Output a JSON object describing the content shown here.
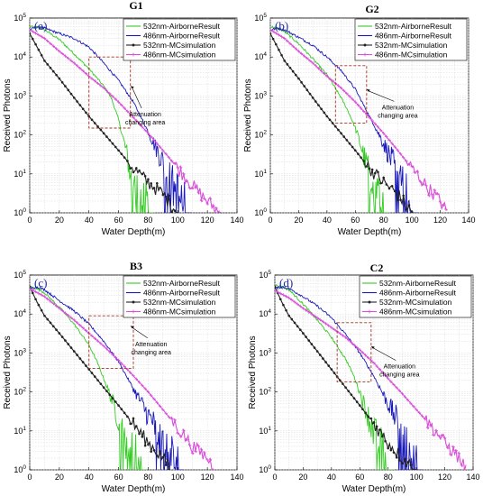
{
  "colors": {
    "green": "#33cc22",
    "blue": "#1a1ab8",
    "black": "#222222",
    "magenta": "#d84fd8",
    "box": "#a0301c"
  },
  "legend_labels": [
    "532nm-AirborneResult",
    "486nm-AirborneResult",
    "532nm-MCsimulation",
    "486nm-MCsimulation"
  ],
  "annotation": [
    "Attenuation",
    "changing area"
  ],
  "xlabel": "Water Depth(m)",
  "ylabel": "Received Photons",
  "chart_data": [
    {
      "type": "line",
      "title": "G1",
      "panel_label": "(a)",
      "xlabel": "Water Depth(m)",
      "ylabel": "Received Photons",
      "xlim": [
        0,
        140
      ],
      "ylim": [
        1,
        100000
      ],
      "yscale": "log",
      "xticks": [
        0,
        20,
        40,
        60,
        80,
        100,
        120,
        140
      ],
      "yticks": [
        "10^0",
        "10^1",
        "10^2",
        "10^3",
        "10^4",
        "10^5"
      ],
      "legend_placement": "top-right",
      "grid": true,
      "series": [
        {
          "name": "532nm-AirborneResult",
          "x": [
            0,
            5,
            10,
            20,
            30,
            40,
            50,
            55,
            60,
            65,
            68,
            70,
            75,
            80
          ],
          "y": [
            60000,
            58000,
            50000,
            28000,
            12000,
            5000,
            1800,
            900,
            250,
            40,
            10,
            4,
            2,
            1
          ]
        },
        {
          "name": "486nm-AirborneResult",
          "x": [
            0,
            5,
            10,
            20,
            30,
            40,
            50,
            60,
            70,
            80,
            90,
            95,
            100,
            105
          ],
          "y": [
            50000,
            60000,
            55000,
            40000,
            30000,
            18000,
            7000,
            2500,
            700,
            120,
            20,
            6,
            3,
            1
          ]
        },
        {
          "name": "532nm-MCsimulation",
          "x": [
            0,
            5,
            10,
            20,
            30,
            40,
            50,
            60,
            70,
            80,
            90,
            100
          ],
          "y": [
            40000,
            18000,
            8000,
            2800,
            900,
            300,
            110,
            40,
            14,
            6,
            3,
            1
          ]
        },
        {
          "name": "486nm-MCsimulation",
          "x": [
            0,
            10,
            20,
            30,
            40,
            50,
            60,
            70,
            80,
            90,
            100,
            110,
            120,
            128
          ],
          "y": [
            50000,
            30000,
            14000,
            7000,
            3200,
            1600,
            700,
            280,
            110,
            40,
            14,
            5,
            2,
            1
          ]
        }
      ],
      "box": {
        "x": [
          40,
          68
        ],
        "y": [
          150,
          10000
        ]
      },
      "annotation_pos": {
        "x": 78,
        "y": 300
      },
      "arrow_tip": {
        "x": 68,
        "y": 1800
      }
    },
    {
      "type": "line",
      "title": "G2",
      "panel_label": "(b)",
      "xlabel": "Water Depth(m)",
      "ylabel": "Received Photons",
      "xlim": [
        0,
        140
      ],
      "ylim": [
        1,
        100000
      ],
      "yscale": "log",
      "xticks": [
        0,
        20,
        40,
        60,
        80,
        100,
        120,
        140
      ],
      "yticks": [
        "10^0",
        "10^1",
        "10^2",
        "10^3",
        "10^4",
        "10^5"
      ],
      "legend_placement": "top-right",
      "grid": true,
      "series": [
        {
          "name": "532nm-AirborneResult",
          "x": [
            0,
            5,
            10,
            20,
            30,
            40,
            50,
            55,
            60,
            65,
            70,
            75,
            80
          ],
          "y": [
            60000,
            55000,
            45000,
            22000,
            9000,
            3500,
            900,
            400,
            150,
            40,
            8,
            3,
            1
          ]
        },
        {
          "name": "486nm-AirborneResult",
          "x": [
            0,
            5,
            10,
            20,
            30,
            40,
            50,
            60,
            70,
            80,
            90,
            95,
            100
          ],
          "y": [
            50000,
            55000,
            50000,
            32000,
            20000,
            10000,
            4500,
            1500,
            300,
            60,
            10,
            3,
            1
          ]
        },
        {
          "name": "532nm-MCsimulation",
          "x": [
            0,
            5,
            10,
            20,
            30,
            40,
            50,
            60,
            70,
            80,
            90,
            100
          ],
          "y": [
            40000,
            18000,
            8000,
            2800,
            900,
            300,
            110,
            40,
            14,
            6,
            3,
            1
          ]
        },
        {
          "name": "486nm-MCsimulation",
          "x": [
            0,
            10,
            20,
            30,
            40,
            50,
            60,
            70,
            80,
            90,
            100,
            110,
            120,
            125
          ],
          "y": [
            50000,
            30000,
            14000,
            7000,
            3200,
            1600,
            700,
            280,
            110,
            40,
            14,
            5,
            2,
            1
          ]
        }
      ],
      "box": {
        "x": [
          46,
          68
        ],
        "y": [
          200,
          6000
        ]
      },
      "annotation_pos": {
        "x": 90,
        "y": 450
      },
      "arrow_tip": {
        "x": 68,
        "y": 1500
      }
    },
    {
      "type": "line",
      "title": "",
      "panel_label": "(c)",
      "subtitle": "B3",
      "xlabel": "Water Depth(m)",
      "ylabel": "Received Photons",
      "xlim": [
        0,
        140
      ],
      "ylim": [
        1,
        100000
      ],
      "yscale": "log",
      "xticks": [
        0,
        20,
        40,
        60,
        80,
        100,
        120,
        140
      ],
      "yticks": [
        "10^0",
        "10^1",
        "10^2",
        "10^3",
        "10^4",
        "10^5"
      ],
      "legend_placement": "top-right",
      "grid": true,
      "series": [
        {
          "name": "532nm-AirborneResult",
          "x": [
            0,
            5,
            10,
            20,
            30,
            40,
            45,
            50,
            55,
            60,
            65,
            70,
            75
          ],
          "y": [
            50000,
            45000,
            35000,
            15000,
            5500,
            1600,
            650,
            220,
            70,
            20,
            6,
            2,
            1
          ]
        },
        {
          "name": "486nm-AirborneResult",
          "x": [
            0,
            5,
            10,
            20,
            30,
            40,
            50,
            60,
            70,
            80,
            90,
            100
          ],
          "y": [
            45000,
            50000,
            42000,
            22000,
            12000,
            5500,
            2000,
            600,
            120,
            25,
            5,
            1
          ]
        },
        {
          "name": "532nm-MCsimulation",
          "x": [
            0,
            5,
            10,
            20,
            30,
            40,
            50,
            60,
            70,
            80,
            90,
            95
          ],
          "y": [
            50000,
            20000,
            9000,
            3200,
            1100,
            380,
            130,
            45,
            15,
            5,
            2,
            1
          ]
        },
        {
          "name": "486nm-MCsimulation",
          "x": [
            0,
            10,
            20,
            30,
            40,
            50,
            60,
            70,
            80,
            90,
            100,
            110,
            120,
            125
          ],
          "y": [
            45000,
            28000,
            14000,
            7000,
            3200,
            1500,
            650,
            260,
            100,
            35,
            12,
            4,
            2,
            1
          ]
        }
      ],
      "box": {
        "x": [
          40,
          70
        ],
        "y": [
          400,
          9000
        ]
      },
      "annotation_pos": {
        "x": 82,
        "y": 1500
      },
      "arrow_tip": {
        "x": 68,
        "y": 5000
      }
    },
    {
      "type": "line",
      "title": "C2",
      "panel_label": "(d)",
      "xlabel": "Water Depth(m)",
      "ylabel": "Received Photons",
      "xlim": [
        0,
        140
      ],
      "ylim": [
        1,
        100000
      ],
      "yscale": "log",
      "xticks": [
        0,
        20,
        40,
        60,
        80,
        100,
        120,
        140
      ],
      "yticks": [
        "10^0",
        "10^1",
        "10^2",
        "10^3",
        "10^4",
        "10^5"
      ],
      "legend_placement": "top-right",
      "grid": true,
      "series": [
        {
          "name": "532nm-AirborneResult",
          "x": [
            0,
            5,
            10,
            20,
            30,
            40,
            50,
            55,
            60,
            65,
            70,
            75,
            80
          ],
          "y": [
            55000,
            50000,
            42000,
            18000,
            7000,
            2500,
            700,
            300,
            100,
            30,
            8,
            3,
            1
          ]
        },
        {
          "name": "486nm-AirborneResult",
          "x": [
            0,
            5,
            10,
            20,
            30,
            40,
            50,
            60,
            70,
            80,
            90,
            95,
            100
          ],
          "y": [
            45000,
            50000,
            45000,
            28000,
            16000,
            8000,
            3000,
            1000,
            250,
            50,
            10,
            3,
            1
          ]
        },
        {
          "name": "532nm-MCsimulation",
          "x": [
            0,
            5,
            10,
            20,
            30,
            40,
            50,
            60,
            70,
            80,
            90,
            100
          ],
          "y": [
            50000,
            20000,
            9000,
            3200,
            1100,
            380,
            130,
            45,
            15,
            5,
            2,
            1
          ]
        },
        {
          "name": "486nm-MCsimulation",
          "x": [
            0,
            10,
            20,
            30,
            40,
            50,
            60,
            70,
            80,
            90,
            100,
            110,
            120,
            130,
            135
          ],
          "y": [
            40000,
            26000,
            14000,
            8000,
            4500,
            2500,
            1200,
            550,
            220,
            90,
            35,
            14,
            5,
            2,
            1
          ]
        }
      ],
      "box": {
        "x": [
          44,
          68
        ],
        "y": [
          180,
          6000
        ]
      },
      "annotation_pos": {
        "x": 88,
        "y": 400
      },
      "arrow_tip": {
        "x": 68,
        "y": 1500
      }
    }
  ]
}
